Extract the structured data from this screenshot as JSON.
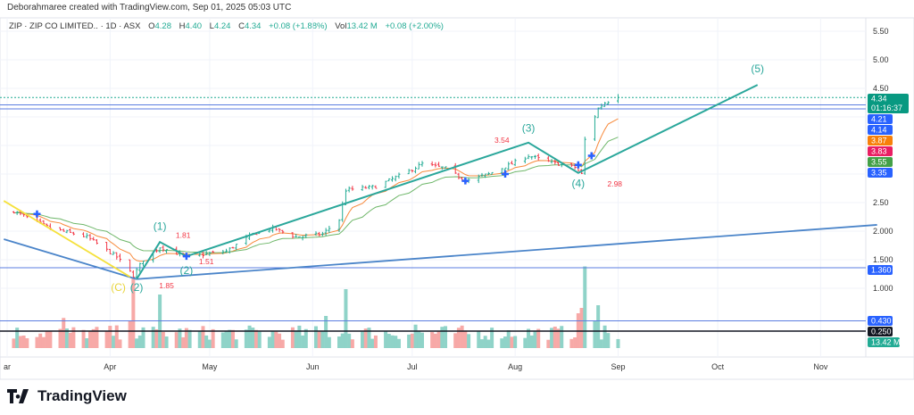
{
  "header": {
    "attribution": "Deborahmaree created with TradingView.com, Sep 01, 2025 05:03 UTC"
  },
  "legend": {
    "symbol": "ZIP · ZIP CO LIMITED.. · 1D · ASX",
    "o_label": "O",
    "o": "4.28",
    "h_label": "H",
    "h": "4.40",
    "l_label": "L",
    "l": "4.24",
    "c_label": "C",
    "c": "4.34",
    "change": "+0.08 (+1.88%)",
    "vol_label": "Vol",
    "vol": "13.42 M",
    "vol_change": "+0.08 (+2.00%)"
  },
  "brand": {
    "name": "TradingView"
  },
  "colors": {
    "up": "#22ab94",
    "down": "#f23645",
    "vol_up": "#8fd3c8",
    "vol_down": "#f7a9a7",
    "wave": "#2aa79b",
    "trend": "#4a84c9",
    "yellow": "#f5e13c",
    "ma_fast": "#f7893b",
    "ma_slow": "#6fb76a",
    "marker": "#2962ff"
  },
  "chart_data": {
    "type": "ohlc",
    "title": "ZIP · ZIP CO LIMITED.. · 1D · ASX",
    "price_ticks": [
      "5.50",
      "5.00",
      "4.50",
      "2.50",
      "2.000",
      "1.500",
      "1.000"
    ],
    "price_tick_values": [
      5.5,
      5.0,
      4.5,
      2.5,
      2.0,
      1.5,
      1.0
    ],
    "x_ticks": [
      {
        "label": "ar",
        "date": "2025-03-01"
      },
      {
        "label": "Apr",
        "date": "2025-04-01"
      },
      {
        "label": "May",
        "date": "2025-05-01"
      },
      {
        "label": "Jun",
        "date": "2025-06-01"
      },
      {
        "label": "Jul",
        "date": "2025-07-01"
      },
      {
        "label": "Aug",
        "date": "2025-08-01"
      },
      {
        "label": "Sep",
        "date": "2025-09-01"
      },
      {
        "label": "Oct",
        "date": "2025-10-01"
      },
      {
        "label": "Nov",
        "date": "2025-11-01"
      }
    ],
    "close_keypoints": [
      [
        "2025-03-03",
        2.35
      ],
      [
        "2025-03-14",
        2.05
      ],
      [
        "2025-03-25",
        1.9
      ],
      [
        "2025-04-03",
        1.55
      ],
      [
        "2025-04-08",
        1.22
      ],
      [
        "2025-04-11",
        1.5
      ],
      [
        "2025-04-16",
        1.72
      ],
      [
        "2025-04-24",
        1.55
      ],
      [
        "2025-05-06",
        1.65
      ],
      [
        "2025-05-14",
        1.95
      ],
      [
        "2025-05-20",
        2.05
      ],
      [
        "2025-05-27",
        1.9
      ],
      [
        "2025-06-04",
        1.95
      ],
      [
        "2025-06-09",
        2.2
      ],
      [
        "2025-06-11",
        2.72
      ],
      [
        "2025-06-20",
        2.78
      ],
      [
        "2025-06-30",
        3.05
      ],
      [
        "2025-07-04",
        3.18
      ],
      [
        "2025-07-11",
        3.1
      ],
      [
        "2025-07-17",
        2.88
      ],
      [
        "2025-07-24",
        3.0
      ],
      [
        "2025-07-31",
        3.18
      ],
      [
        "2025-08-05",
        3.32
      ],
      [
        "2025-08-12",
        3.2
      ],
      [
        "2025-08-19",
        3.12
      ],
      [
        "2025-08-21",
        3.0
      ],
      [
        "2025-08-22",
        3.6
      ],
      [
        "2025-08-26",
        4.15
      ],
      [
        "2025-08-28",
        4.25
      ],
      [
        "2025-09-01",
        4.34
      ]
    ],
    "last_bar": {
      "open": 4.28,
      "high": 4.4,
      "low": 4.24,
      "close": 4.34,
      "volume_m": 13.42
    },
    "volume_spikes_m": [
      [
        "2025-03-18",
        45
      ],
      [
        "2025-04-07",
        40
      ],
      [
        "2025-04-08",
        105
      ],
      [
        "2025-04-16",
        80
      ],
      [
        "2025-06-05",
        48
      ],
      [
        "2025-06-11",
        88
      ],
      [
        "2025-07-02",
        35
      ],
      [
        "2025-08-20",
        52
      ],
      [
        "2025-08-21",
        60
      ],
      [
        "2025-08-22",
        122
      ],
      [
        "2025-08-25",
        40
      ],
      [
        "2025-08-26",
        64
      ]
    ],
    "price_labels": [
      {
        "text": "4.34",
        "sub": "01:16:37",
        "price": 4.34,
        "color": "#089981"
      },
      {
        "text": "4.21",
        "price": 4.21,
        "color": "#2962ff"
      },
      {
        "text": "4.14",
        "price": 4.14,
        "color": "#2962ff"
      },
      {
        "text": "3.87",
        "price": 3.87,
        "color": "#f7800a"
      },
      {
        "text": "3.83",
        "price": 3.83,
        "color": "#e91e63"
      },
      {
        "text": "3.55",
        "price": 3.55,
        "color": "#43a047"
      },
      {
        "text": "3.35",
        "price": 3.35,
        "color": "#2962ff"
      },
      {
        "text": "1.360",
        "price": 1.36,
        "color": "#2962ff"
      },
      {
        "text": "0.430",
        "price": 0.43,
        "color": "#2962ff"
      },
      {
        "text": "0.250",
        "price": 0.25,
        "color": "#131722"
      },
      {
        "text": "13.42 M",
        "price": 0.05,
        "color": "#22ab94"
      }
    ],
    "horizontal_lines": [
      {
        "price": 4.34,
        "color": "#22ab94",
        "style": "dotted"
      },
      {
        "price": 4.21,
        "color": "#5b7de0"
      },
      {
        "price": 4.14,
        "color": "#5b7de0"
      },
      {
        "price": 1.36,
        "color": "#5b7de0"
      },
      {
        "price": 0.43,
        "color": "#5b7de0"
      },
      {
        "price": 0.25,
        "color": "#131722"
      }
    ],
    "wave_path": [
      [
        "2025-04-09",
        1.16
      ],
      [
        "2025-04-16",
        1.81
      ],
      [
        "2025-04-24",
        1.56
      ],
      [
        "2025-08-05",
        3.55
      ],
      [
        "2025-08-20",
        3.02
      ],
      [
        "2025-10-13",
        4.56
      ]
    ],
    "trend_lines": [
      {
        "from": [
          "2025-02-28",
          1.86
        ],
        "to": [
          "2025-04-09",
          1.16
        ],
        "color": "trend"
      },
      {
        "from": [
          "2025-04-09",
          1.16
        ],
        "to": [
          "2025-11-18",
          2.11
        ],
        "color": "trend"
      },
      {
        "from": [
          "2025-02-28",
          2.53
        ],
        "to": [
          "2025-04-07",
          1.2
        ],
        "color": "yellow"
      }
    ],
    "wave_labels": [
      {
        "text": "(1)",
        "date": "2025-04-16",
        "price": 2.02
      },
      {
        "text": "(2)",
        "date": "2025-04-24",
        "price": 1.25
      },
      {
        "text": "(2)",
        "date": "2025-04-09",
        "price": 0.95
      },
      {
        "text": "(C)",
        "date": "2025-04-06",
        "price": 0.95,
        "color": "yellow"
      },
      {
        "text": "(3)",
        "date": "2025-08-05",
        "price": 3.74
      },
      {
        "text": "(4)",
        "date": "2025-08-20",
        "price": 2.77
      },
      {
        "text": "(5)",
        "date": "2025-10-13",
        "price": 4.78
      }
    ],
    "notes": [
      {
        "text": "1.81",
        "date": "2025-04-23",
        "price": 1.88
      },
      {
        "text": "1.51",
        "date": "2025-04-30",
        "price": 1.42
      },
      {
        "text": "1.85",
        "date": "2025-04-18",
        "price": 1.0
      },
      {
        "text": "3.54",
        "date": "2025-07-28",
        "price": 3.55
      },
      {
        "text": "2.98",
        "date": "2025-08-31",
        "price": 2.78
      }
    ],
    "markers": [
      [
        "2025-03-10",
        2.3
      ],
      [
        "2025-04-24",
        1.56
      ],
      [
        "2025-07-17",
        2.88
      ],
      [
        "2025-07-29",
        3.0
      ],
      [
        "2025-08-20",
        3.16
      ],
      [
        "2025-08-24",
        3.32
      ]
    ]
  }
}
